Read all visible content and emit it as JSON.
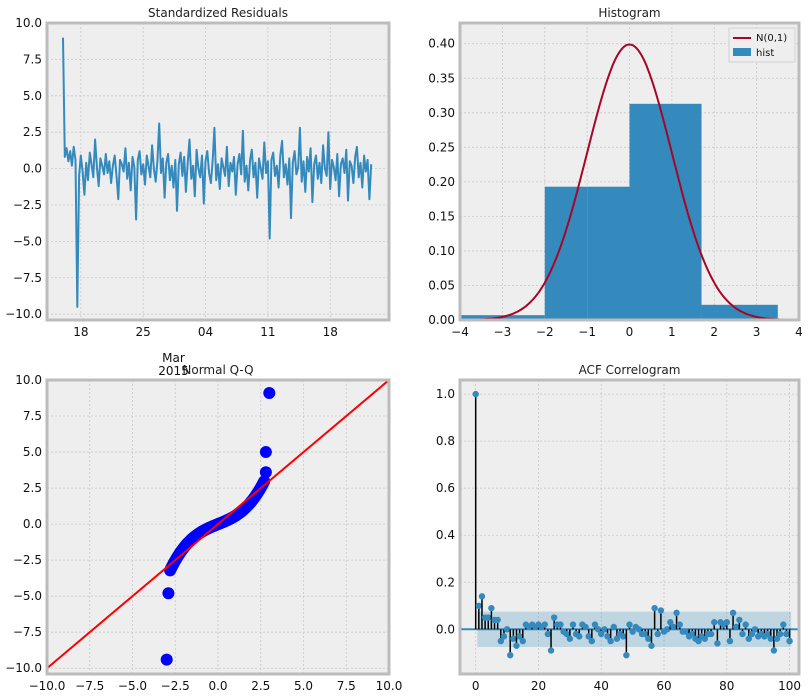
{
  "figure": {
    "background": "#ffffff",
    "axes_face": "#eeeeee",
    "axes_edge": "#bcbcbc",
    "grid": "#c8c8c8",
    "blue": "#348abd",
    "red_curve": "#a60628"
  },
  "chart_data": [
    {
      "type": "line",
      "title": "Standardized Residuals",
      "xlabel": "",
      "ylabel": "",
      "x_ticks": [
        "18",
        "25",
        "04",
        "11",
        "18"
      ],
      "x_secondary_label": [
        "Mar",
        "2015"
      ],
      "ylim": [
        -10.4,
        10.0
      ],
      "y_ticks": [
        -10.0,
        -7.5,
        -5.0,
        -2.5,
        0.0,
        2.5,
        5.0,
        7.5,
        10.0
      ],
      "grid": true,
      "series": [
        {
          "color": "#348abd",
          "points": [
            [
              0,
              9.0
            ],
            [
              1,
              0.8
            ],
            [
              2,
              1.4
            ],
            [
              3,
              0.5
            ],
            [
              4,
              1.2
            ],
            [
              5,
              0.2
            ],
            [
              6,
              1.5
            ],
            [
              7,
              0.6
            ],
            [
              8,
              -9.5
            ],
            [
              9,
              -0.5
            ],
            [
              10,
              0.9
            ],
            [
              11,
              -0.2
            ],
            [
              12,
              -1.8
            ],
            [
              13,
              0.4
            ],
            [
              14,
              -0.8
            ],
            [
              15,
              1.1
            ],
            [
              16,
              0.3
            ],
            [
              17,
              -0.6
            ],
            [
              18,
              2.0
            ],
            [
              19,
              0.1
            ],
            [
              20,
              -1.2
            ],
            [
              21,
              0.7
            ],
            [
              22,
              0.2
            ],
            [
              23,
              -0.4
            ],
            [
              24,
              1.0
            ],
            [
              25,
              -0.3
            ],
            [
              26,
              0.5
            ],
            [
              27,
              -1.0
            ],
            [
              28,
              0.2
            ],
            [
              29,
              0.9
            ],
            [
              30,
              -0.5
            ],
            [
              31,
              -2.1
            ],
            [
              32,
              0.6
            ],
            [
              33,
              0.3
            ],
            [
              34,
              -0.2
            ],
            [
              35,
              1.4
            ],
            [
              36,
              -0.7
            ],
            [
              37,
              0.4
            ],
            [
              38,
              -1.5
            ],
            [
              39,
              0.8
            ],
            [
              40,
              0.1
            ],
            [
              41,
              -3.5
            ],
            [
              42,
              0.6
            ],
            [
              43,
              1.2
            ],
            [
              44,
              -0.4
            ],
            [
              45,
              0.3
            ],
            [
              46,
              -1.1
            ],
            [
              47,
              0.9
            ],
            [
              48,
              0.2
            ],
            [
              49,
              -0.6
            ],
            [
              50,
              1.6
            ],
            [
              51,
              0.0
            ],
            [
              52,
              -0.9
            ],
            [
              53,
              0.5
            ],
            [
              54,
              3.1
            ],
            [
              55,
              -0.3
            ],
            [
              56,
              0.7
            ],
            [
              57,
              -2.0
            ],
            [
              58,
              0.4
            ],
            [
              59,
              1.0
            ],
            [
              60,
              -0.8
            ],
            [
              61,
              0.2
            ],
            [
              62,
              -1.3
            ],
            [
              63,
              0.6
            ],
            [
              64,
              -2.9
            ],
            [
              65,
              0.3
            ],
            [
              66,
              1.1
            ],
            [
              67,
              -0.5
            ],
            [
              68,
              0.8
            ],
            [
              69,
              -1.6
            ],
            [
              70,
              0.4
            ],
            [
              71,
              2.0
            ],
            [
              72,
              -0.7
            ],
            [
              73,
              0.2
            ],
            [
              74,
              -1.9
            ],
            [
              75,
              1.3
            ],
            [
              76,
              0.0
            ],
            [
              77,
              -0.6
            ],
            [
              78,
              0.9
            ],
            [
              79,
              -2.4
            ],
            [
              80,
              0.5
            ],
            [
              81,
              1.2
            ],
            [
              82,
              -0.3
            ],
            [
              83,
              -1.0
            ],
            [
              84,
              0.6
            ],
            [
              85,
              2.8
            ],
            [
              86,
              -0.8
            ],
            [
              87,
              0.3
            ],
            [
              88,
              -1.4
            ],
            [
              89,
              0.7
            ],
            [
              90,
              0.1
            ],
            [
              91,
              -0.5
            ],
            [
              92,
              1.5
            ],
            [
              93,
              -1.2
            ],
            [
              94,
              0.4
            ],
            [
              95,
              -0.2
            ],
            [
              96,
              0.8
            ],
            [
              97,
              -1.8
            ],
            [
              98,
              0.3
            ],
            [
              99,
              1.0
            ],
            [
              100,
              -0.4
            ],
            [
              101,
              2.6
            ],
            [
              102,
              -0.9
            ],
            [
              103,
              0.2
            ],
            [
              104,
              -1.5
            ],
            [
              105,
              0.6
            ],
            [
              106,
              1.3
            ],
            [
              107,
              -0.6
            ],
            [
              108,
              0.4
            ],
            [
              109,
              -2.0
            ],
            [
              110,
              0.7
            ],
            [
              111,
              0.0
            ],
            [
              112,
              -0.7
            ],
            [
              113,
              1.8
            ],
            [
              114,
              -0.3
            ],
            [
              115,
              0.5
            ],
            [
              116,
              -4.8
            ],
            [
              117,
              0.6
            ],
            [
              118,
              1.1
            ],
            [
              119,
              -0.5
            ],
            [
              120,
              0.2
            ],
            [
              121,
              -1.3
            ],
            [
              122,
              0.9
            ],
            [
              123,
              1.9
            ],
            [
              124,
              -0.6
            ],
            [
              125,
              0.3
            ],
            [
              126,
              -1.1
            ],
            [
              127,
              0.7
            ],
            [
              128,
              -3.4
            ],
            [
              129,
              0.4
            ],
            [
              130,
              1.2
            ],
            [
              131,
              -0.4
            ],
            [
              132,
              0.1
            ],
            [
              133,
              2.8
            ],
            [
              134,
              -0.9
            ],
            [
              135,
              0.5
            ],
            [
              136,
              -1.6
            ],
            [
              137,
              0.8
            ],
            [
              138,
              -0.2
            ],
            [
              139,
              1.4
            ],
            [
              140,
              -2.3
            ],
            [
              141,
              0.3
            ],
            [
              142,
              0.9
            ],
            [
              143,
              -0.7
            ],
            [
              144,
              0.4
            ],
            [
              145,
              -1.0
            ],
            [
              146,
              1.6
            ],
            [
              147,
              0.0
            ],
            [
              148,
              -0.5
            ],
            [
              149,
              2.5
            ],
            [
              150,
              -1.4
            ],
            [
              151,
              0.6
            ],
            [
              152,
              0.1
            ],
            [
              153,
              -0.8
            ],
            [
              154,
              1.0
            ],
            [
              155,
              -1.9
            ],
            [
              156,
              0.3
            ],
            [
              157,
              0.7
            ],
            [
              158,
              -0.3
            ],
            [
              159,
              1.3
            ],
            [
              160,
              -2.2
            ],
            [
              161,
              0.5
            ],
            [
              162,
              0.2
            ],
            [
              163,
              -1.0
            ],
            [
              164,
              0.8
            ],
            [
              165,
              1.5
            ],
            [
              166,
              -0.6
            ],
            [
              167,
              0.4
            ],
            [
              168,
              -1.3
            ],
            [
              169,
              0.9
            ],
            [
              170,
              -0.2
            ],
            [
              171,
              0.6
            ],
            [
              172,
              -2.1
            ],
            [
              173,
              0.3
            ]
          ]
        }
      ]
    },
    {
      "type": "bar",
      "title": "Histogram",
      "xlim": [
        -4,
        4
      ],
      "ylim": [
        0,
        0.43
      ],
      "x_ticks": [
        -4,
        -3,
        -2,
        -1,
        0,
        1,
        2,
        3,
        4
      ],
      "y_ticks": [
        0.0,
        0.05,
        0.1,
        0.15,
        0.2,
        0.25,
        0.3,
        0.35,
        0.4
      ],
      "grid": true,
      "legend_position": "top-right",
      "bins": [
        {
          "x0": -4.0,
          "x1": -2.0,
          "value": 0.007
        },
        {
          "x0": -2.0,
          "x1": -1.0,
          "value": 0.193
        },
        {
          "x0": -1.0,
          "x1": 0.0,
          "value": 0.193
        },
        {
          "x0": 0.0,
          "x1": 1.7,
          "value": 0.313
        },
        {
          "x0": 1.7,
          "x1": 3.5,
          "value": 0.022
        }
      ],
      "curve": {
        "name": "N(0,1)",
        "mean": 0,
        "std": 1,
        "color": "#a60628"
      },
      "bars_name": "hist",
      "legend": [
        "N(0,1)",
        "hist"
      ]
    },
    {
      "type": "scatter",
      "title": "Normal Q-Q",
      "xlim": [
        -10.0,
        10.0
      ],
      "ylim": [
        -10.4,
        10.0
      ],
      "x_ticks": [
        -10.0,
        -7.5,
        -5.0,
        -2.5,
        0.0,
        2.5,
        5.0,
        7.5,
        10.0
      ],
      "y_ticks": [
        -10.0,
        -7.5,
        -5.0,
        -2.5,
        0.0,
        2.5,
        5.0,
        7.5,
        10.0
      ],
      "grid": true,
      "reference_line": {
        "slope": 1,
        "intercept": 0,
        "color": "#ff0000"
      },
      "point_color": "#0000ff",
      "outliers": [
        [
          -3.0,
          -9.4
        ],
        [
          -2.9,
          -4.8
        ],
        [
          2.8,
          3.6
        ],
        [
          2.8,
          5.0
        ],
        [
          3.0,
          9.1
        ]
      ],
      "bulk": {
        "x_from": -2.8,
        "x_to": 2.7,
        "count": 120
      }
    },
    {
      "type": "bar",
      "title": "ACF Correlogram",
      "xlim": [
        -5,
        103
      ],
      "ylim": [
        -0.19,
        1.06
      ],
      "x_ticks": [
        0,
        20,
        40,
        60,
        80,
        100
      ],
      "y_ticks": [
        0.0,
        0.2,
        0.4,
        0.6,
        0.8,
        1.0
      ],
      "grid": true,
      "confidence_band": [
        0.075,
        -0.075
      ],
      "lags": [
        0,
        1,
        2,
        3,
        4,
        5,
        6,
        7,
        8,
        9,
        10,
        11,
        12,
        13,
        14,
        15,
        16,
        17,
        18,
        19,
        20,
        21,
        22,
        23,
        24,
        25,
        26,
        27,
        28,
        29,
        30,
        31,
        32,
        33,
        34,
        35,
        36,
        37,
        38,
        39,
        40,
        41,
        42,
        43,
        44,
        45,
        46,
        47,
        48,
        49,
        50,
        51,
        52,
        53,
        54,
        55,
        56,
        57,
        58,
        59,
        60,
        61,
        62,
        63,
        64,
        65,
        66,
        67,
        68,
        69,
        70,
        71,
        72,
        73,
        74,
        75,
        76,
        77,
        78,
        79,
        80,
        81,
        82,
        83,
        84,
        85,
        86,
        87,
        88,
        89,
        90,
        91,
        92,
        93,
        94,
        95,
        96,
        97,
        98,
        99,
        100
      ],
      "values": [
        1.0,
        0.1,
        0.14,
        0.05,
        0.05,
        0.09,
        0.04,
        0.04,
        -0.05,
        -0.03,
        0.0,
        -0.11,
        -0.04,
        -0.07,
        -0.03,
        -0.05,
        0.02,
        0.01,
        0.02,
        0.01,
        0.02,
        0.01,
        0.02,
        -0.02,
        -0.09,
        0.05,
        0.02,
        0.02,
        -0.01,
        -0.02,
        -0.04,
        0.02,
        -0.02,
        -0.03,
        0.02,
        0.01,
        -0.03,
        -0.05,
        0.02,
        0.0,
        -0.02,
        0.0,
        -0.03,
        -0.05,
        0.01,
        -0.04,
        -0.02,
        -0.03,
        -0.11,
        0.02,
        -0.01,
        0.01,
        0.0,
        -0.02,
        -0.02,
        -0.04,
        -0.07,
        0.09,
        -0.02,
        0.08,
        -0.01,
        0.0,
        0.03,
        0.01,
        0.07,
        0.02,
        -0.01,
        -0.01,
        -0.03,
        -0.02,
        -0.04,
        -0.05,
        -0.03,
        -0.04,
        -0.02,
        -0.02,
        0.03,
        -0.06,
        0.03,
        0.02,
        0.03,
        -0.05,
        0.07,
        0.01,
        0.04,
        -0.02,
        0.02,
        -0.04,
        -0.02,
        0.0,
        -0.03,
        -0.02,
        -0.03,
        -0.02,
        -0.04,
        -0.09,
        -0.04,
        -0.02,
        0.02,
        -0.02,
        -0.05
      ]
    }
  ]
}
